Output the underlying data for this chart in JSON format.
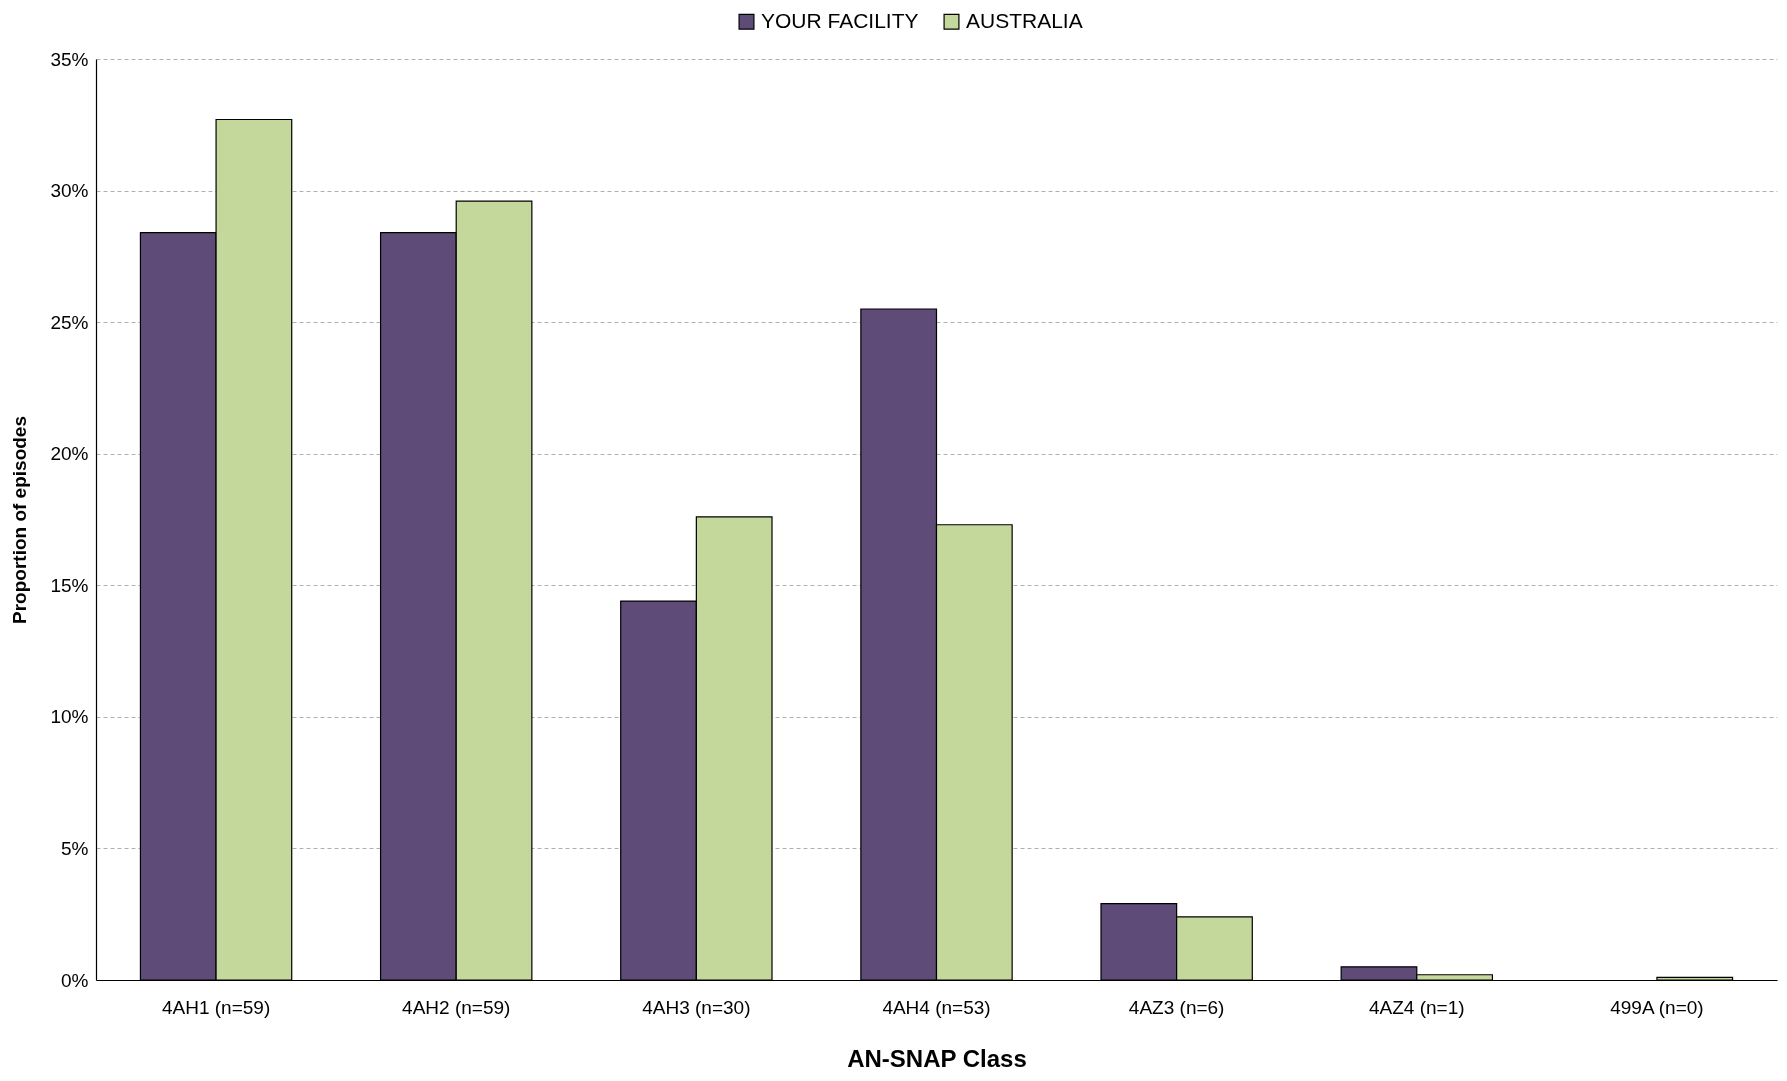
{
  "chart_data": {
    "type": "bar",
    "xlabel": "AN-SNAP Class",
    "ylabel": "Proportion of episodes",
    "categories": [
      "4AH1 (n=59)",
      "4AH2 (n=59)",
      "4AH3 (n=30)",
      "4AH4 (n=53)",
      "4AZ3 (n=6)",
      "4AZ4 (n=1)",
      "499A (n=0)"
    ],
    "series": [
      {
        "name": "YOUR FACILITY",
        "color": "#5f4b78",
        "values": [
          28.4,
          28.4,
          14.4,
          25.5,
          2.9,
          0.5,
          0
        ]
      },
      {
        "name": "AUSTRALIA",
        "color": "#c4d89c",
        "values": [
          32.7,
          29.6,
          17.6,
          17.3,
          2.4,
          0.2,
          0.1
        ]
      }
    ],
    "ylim": [
      0,
      35
    ],
    "yticks": [
      {
        "value": 0,
        "label": "0%"
      },
      {
        "value": 5,
        "label": "5%"
      },
      {
        "value": 10,
        "label": "10%"
      },
      {
        "value": 15,
        "label": "15%"
      },
      {
        "value": 20,
        "label": "20%"
      },
      {
        "value": 25,
        "label": "25%"
      },
      {
        "value": 30,
        "label": "30%"
      },
      {
        "value": 35,
        "label": "35%"
      }
    ],
    "grid": "y",
    "legend": "top"
  }
}
